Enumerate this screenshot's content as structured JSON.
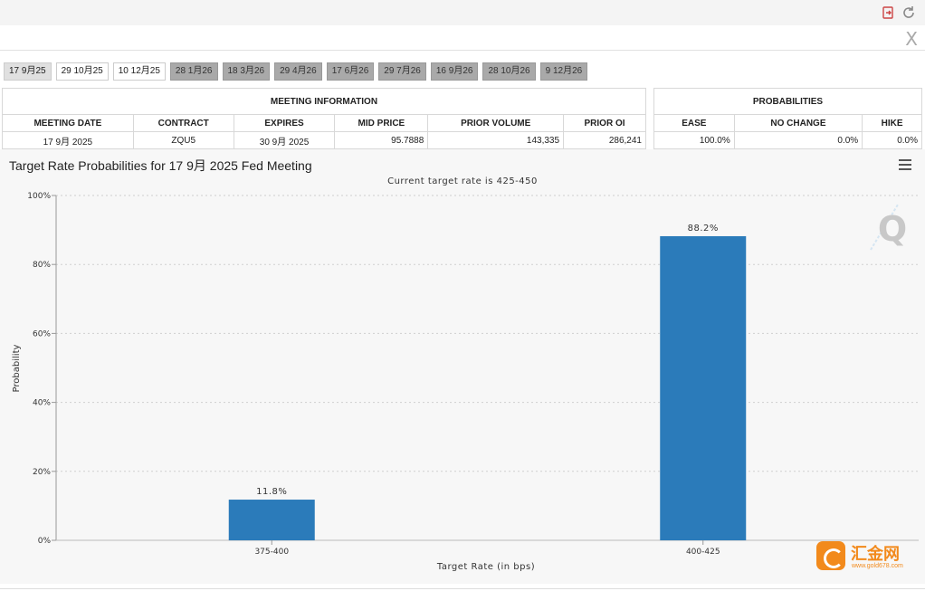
{
  "toolbar": {
    "icons": [
      "export-icon",
      "refresh-icon"
    ],
    "close_icon": "X"
  },
  "meeting_tabs": [
    {
      "label": "17 9月25",
      "state": "active"
    },
    {
      "label": "29 10月25",
      "state": "normal"
    },
    {
      "label": "10 12月25",
      "state": "normal"
    },
    {
      "label": "28 1月26",
      "state": "dim"
    },
    {
      "label": "18 3月26",
      "state": "dim"
    },
    {
      "label": "29 4月26",
      "state": "dim"
    },
    {
      "label": "17 6月26",
      "state": "dim"
    },
    {
      "label": "29 7月26",
      "state": "dim"
    },
    {
      "label": "16 9月26",
      "state": "dim"
    },
    {
      "label": "28 10月26",
      "state": "dim"
    },
    {
      "label": "9 12月26",
      "state": "dim"
    }
  ],
  "meeting_info": {
    "title": "MEETING INFORMATION",
    "headers": [
      "MEETING DATE",
      "CONTRACT",
      "EXPIRES",
      "MID PRICE",
      "PRIOR VOLUME",
      "PRIOR OI"
    ],
    "row": [
      "17 9月 2025",
      "ZQU5",
      "30 9月 2025",
      "95.7888",
      "143,335",
      "286,241"
    ]
  },
  "probabilities": {
    "title": "PROBABILITIES",
    "headers": [
      "EASE",
      "NO CHANGE",
      "HIKE"
    ],
    "row": [
      "100.0%",
      "0.0%",
      "0.0%"
    ]
  },
  "chart_data": {
    "type": "bar",
    "title": "Target Rate Probabilities for 17 9月 2025 Fed Meeting",
    "subtitle": "Current target rate is 425-450",
    "xlabel": "Target Rate (in bps)",
    "ylabel": "Probability",
    "categories": [
      "375-400",
      "400-425"
    ],
    "values": [
      11.8,
      88.2
    ],
    "data_labels": [
      "11.8%",
      "88.2%"
    ],
    "ylim": [
      0,
      100
    ],
    "yticks": [
      "0%",
      "20%",
      "40%",
      "60%",
      "80%",
      "100%"
    ],
    "grid": true,
    "bar_color": "#2b7bba"
  },
  "watermark": {
    "text": "汇金网",
    "sub": "www.gold678.com"
  },
  "colors": {
    "accent": "#2b7bba",
    "watermark": "#f28a1c"
  }
}
